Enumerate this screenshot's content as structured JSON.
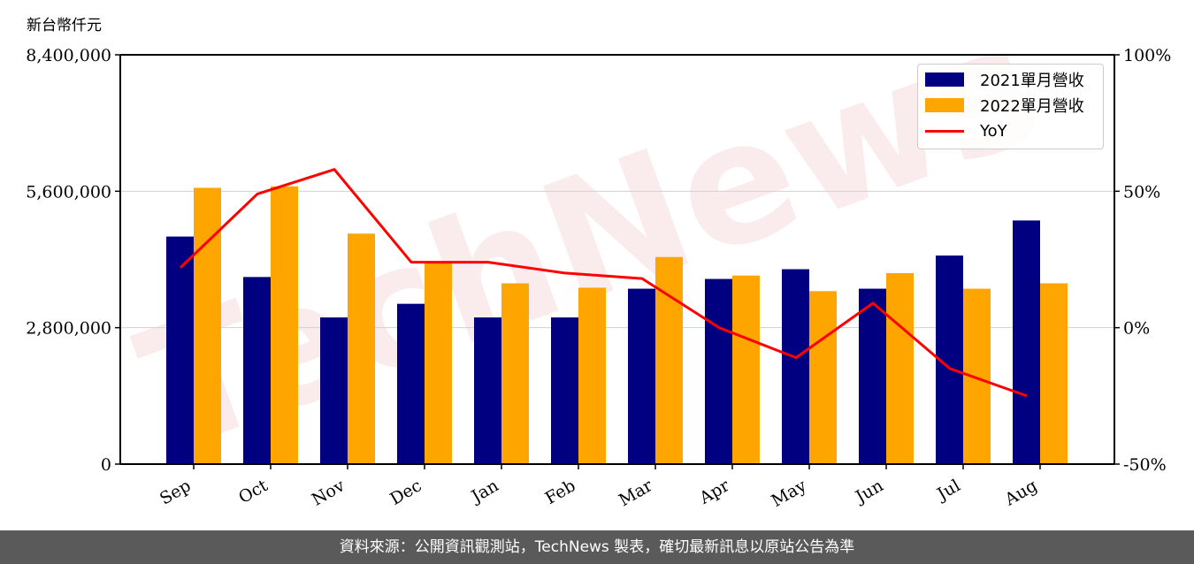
{
  "unit_label": "新台幣仟元",
  "footer_text": "資料來源：公開資訊觀測站，TechNews 製表，確切最新訊息以原站公告為準",
  "watermark": "TechNews",
  "colors": {
    "series_2021": "#000080",
    "series_2022": "#FFA500",
    "yoy": "#FF0000",
    "footer_bg": "#5a5a5a",
    "grid": "#d0d0d0"
  },
  "chart_data": {
    "type": "bar",
    "categories": [
      "Sep",
      "Oct",
      "Nov",
      "Dec",
      "Jan",
      "Feb",
      "Mar",
      "Apr",
      "May",
      "Jun",
      "Jul",
      "Aug"
    ],
    "series": [
      {
        "name": "2021單月營收",
        "type": "bar",
        "axis": "left",
        "values": [
          4670000,
          3840000,
          3010000,
          3290000,
          3010000,
          3010000,
          3600000,
          3800000,
          4000000,
          3600000,
          4280000,
          5000000
        ]
      },
      {
        "name": "2022單月營收",
        "type": "bar",
        "axis": "left",
        "values": [
          5670000,
          5700000,
          4730000,
          4120000,
          3710000,
          3620000,
          4250000,
          3870000,
          3550000,
          3920000,
          3600000,
          3710000
        ]
      },
      {
        "name": "YoY",
        "type": "line",
        "axis": "right",
        "values": [
          22,
          49,
          58,
          24,
          24,
          20,
          18,
          0,
          -11,
          9,
          -15,
          -25
        ]
      }
    ],
    "left_axis": {
      "min": 0,
      "max": 8400000,
      "ticks": [
        "0",
        "2,800,000",
        "5,600,000",
        "8,400,000"
      ]
    },
    "right_axis": {
      "min": -50,
      "max": 100,
      "ticks": [
        "-50%",
        "0%",
        "50%",
        "100%"
      ]
    },
    "grid": true,
    "legend_position": "top-right"
  }
}
